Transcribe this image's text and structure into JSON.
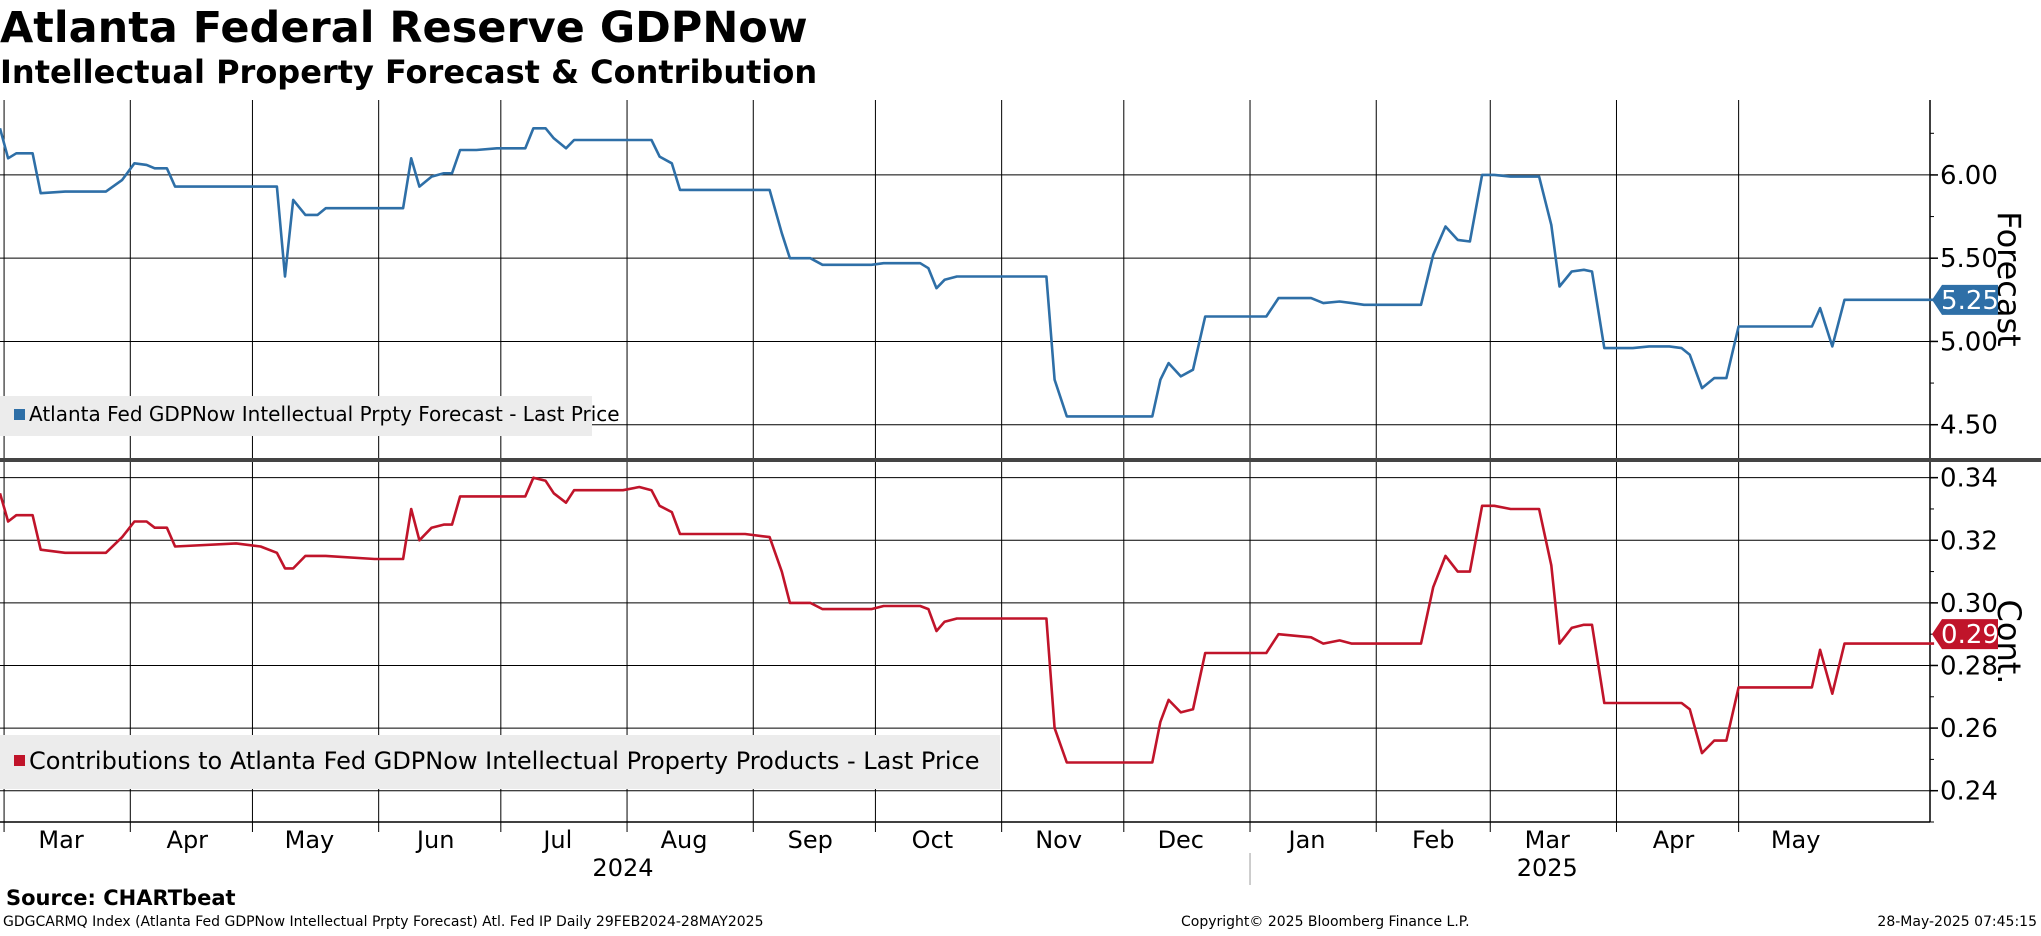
{
  "header": {
    "title": "Atlanta Federal Reserve GDPNow",
    "subtitle": "Intellectual Property Forecast & Contribution"
  },
  "footer": {
    "source": "Source: CHARTbeat",
    "left": "GDGCARMQ Index (Atlanta Fed GDPNow Intellectual Prpty Forecast) Atl. Fed IP  Daily 29FEB2024-28MAY2025",
    "middle": "Copyright© 2025 Bloomberg Finance L.P.",
    "right": "28-May-2025 07:45:15"
  },
  "x_axis": {
    "months": [
      {
        "label": "Mar",
        "date": "2024-03-15"
      },
      {
        "label": "Apr",
        "date": "2024-04-15"
      },
      {
        "label": "May",
        "date": "2024-05-15"
      },
      {
        "label": "Jun",
        "date": "2024-06-15"
      },
      {
        "label": "Jul",
        "date": "2024-07-15"
      },
      {
        "label": "Aug",
        "date": "2024-08-15"
      },
      {
        "label": "Sep",
        "date": "2024-09-15"
      },
      {
        "label": "Oct",
        "date": "2024-10-15"
      },
      {
        "label": "Nov",
        "date": "2024-11-15"
      },
      {
        "label": "Dec",
        "date": "2024-12-15"
      },
      {
        "label": "Jan",
        "date": "2025-01-15"
      },
      {
        "label": "Feb",
        "date": "2025-02-15"
      },
      {
        "label": "Mar",
        "date": "2025-03-15"
      },
      {
        "label": "Apr",
        "date": "2025-04-15"
      },
      {
        "label": "May",
        "date": "2025-05-15"
      }
    ],
    "years": [
      {
        "label": "2024",
        "date": "2024-07-31"
      },
      {
        "label": "2025",
        "date": "2025-03-15"
      }
    ]
  },
  "chart_data": [
    {
      "type": "line",
      "series": [
        {
          "name": "Atlanta Fed GDPNow Intellectual Prpty Forecast - Last Price",
          "color": "#2e6fa7",
          "last_value": "5.25",
          "points": [
            [
              "2024-02-29",
              6.28
            ],
            [
              "2024-03-02",
              6.1
            ],
            [
              "2024-03-04",
              6.13
            ],
            [
              "2024-03-08",
              6.13
            ],
            [
              "2024-03-10",
              5.89
            ],
            [
              "2024-03-16",
              5.9
            ],
            [
              "2024-03-26",
              5.9
            ],
            [
              "2024-03-30",
              5.97
            ],
            [
              "2024-04-02",
              6.07
            ],
            [
              "2024-04-05",
              6.06
            ],
            [
              "2024-04-07",
              6.04
            ],
            [
              "2024-04-10",
              6.04
            ],
            [
              "2024-04-12",
              5.93
            ],
            [
              "2024-04-27",
              5.93
            ],
            [
              "2024-05-07",
              5.93
            ],
            [
              "2024-05-09",
              5.39
            ],
            [
              "2024-05-11",
              5.85
            ],
            [
              "2024-05-14",
              5.76
            ],
            [
              "2024-05-17",
              5.76
            ],
            [
              "2024-05-19",
              5.8
            ],
            [
              "2024-05-31",
              5.8
            ],
            [
              "2024-06-07",
              5.8
            ],
            [
              "2024-06-09",
              6.1
            ],
            [
              "2024-06-11",
              5.93
            ],
            [
              "2024-06-14",
              5.99
            ],
            [
              "2024-06-17",
              6.01
            ],
            [
              "2024-06-19",
              6.01
            ],
            [
              "2024-06-21",
              6.15
            ],
            [
              "2024-06-25",
              6.15
            ],
            [
              "2024-06-30",
              6.16
            ],
            [
              "2024-07-07",
              6.16
            ],
            [
              "2024-07-09",
              6.28
            ],
            [
              "2024-07-12",
              6.28
            ],
            [
              "2024-07-14",
              6.22
            ],
            [
              "2024-07-17",
              6.16
            ],
            [
              "2024-07-19",
              6.21
            ],
            [
              "2024-07-31",
              6.21
            ],
            [
              "2024-08-07",
              6.21
            ],
            [
              "2024-08-09",
              6.11
            ],
            [
              "2024-08-12",
              6.07
            ],
            [
              "2024-08-14",
              5.91
            ],
            [
              "2024-08-30",
              5.91
            ],
            [
              "2024-09-05",
              5.91
            ],
            [
              "2024-09-08",
              5.65
            ],
            [
              "2024-09-10",
              5.5
            ],
            [
              "2024-09-15",
              5.5
            ],
            [
              "2024-09-18",
              5.46
            ],
            [
              "2024-09-30",
              5.46
            ],
            [
              "2024-10-03",
              5.47
            ],
            [
              "2024-10-12",
              5.47
            ],
            [
              "2024-10-14",
              5.44
            ],
            [
              "2024-10-16",
              5.32
            ],
            [
              "2024-10-18",
              5.37
            ],
            [
              "2024-10-21",
              5.39
            ],
            [
              "2024-11-01",
              5.39
            ],
            [
              "2024-11-12",
              5.39
            ],
            [
              "2024-11-14",
              4.77
            ],
            [
              "2024-11-17",
              4.55
            ],
            [
              "2024-11-26",
              4.55
            ],
            [
              "2024-11-28",
              4.55
            ],
            [
              "2024-12-08",
              4.55
            ],
            [
              "2024-12-10",
              4.77
            ],
            [
              "2024-12-12",
              4.87
            ],
            [
              "2024-12-15",
              4.79
            ],
            [
              "2024-12-18",
              4.83
            ],
            [
              "2024-12-21",
              5.15
            ],
            [
              "2025-01-05",
              5.15
            ],
            [
              "2025-01-08",
              5.26
            ],
            [
              "2025-01-16",
              5.26
            ],
            [
              "2025-01-19",
              5.23
            ],
            [
              "2025-01-23",
              5.24
            ],
            [
              "2025-01-26",
              5.23
            ],
            [
              "2025-01-29",
              5.22
            ],
            [
              "2025-02-07",
              5.22
            ],
            [
              "2025-02-12",
              5.22
            ],
            [
              "2025-02-15",
              5.52
            ],
            [
              "2025-02-18",
              5.69
            ],
            [
              "2025-02-21",
              5.61
            ],
            [
              "2025-02-24",
              5.6
            ],
            [
              "2025-02-27",
              6.0
            ],
            [
              "2025-03-02",
              6.0
            ],
            [
              "2025-03-06",
              5.99
            ],
            [
              "2025-03-13",
              5.99
            ],
            [
              "2025-03-16",
              5.7
            ],
            [
              "2025-03-18",
              5.33
            ],
            [
              "2025-03-21",
              5.42
            ],
            [
              "2025-03-24",
              5.43
            ],
            [
              "2025-03-26",
              5.42
            ],
            [
              "2025-03-29",
              4.96
            ],
            [
              "2025-04-05",
              4.96
            ],
            [
              "2025-04-09",
              4.97
            ],
            [
              "2025-04-14",
              4.97
            ],
            [
              "2025-04-17",
              4.96
            ],
            [
              "2025-04-19",
              4.92
            ],
            [
              "2025-04-22",
              4.72
            ],
            [
              "2025-04-25",
              4.78
            ],
            [
              "2025-04-28",
              4.78
            ],
            [
              "2025-05-01",
              5.09
            ],
            [
              "2025-05-07",
              5.09
            ],
            [
              "2025-05-13",
              5.09
            ],
            [
              "2025-05-19",
              5.09
            ],
            [
              "2025-05-21",
              5.2
            ],
            [
              "2025-05-24",
              4.97
            ],
            [
              "2025-05-27",
              5.25
            ],
            [
              "2025-06-04",
              5.25
            ],
            [
              "2025-06-11",
              5.25
            ],
            [
              "2025-06-18",
              5.25
            ]
          ]
        }
      ],
      "ylabel": "Forecast",
      "ylim": [
        4.3,
        6.45
      ],
      "yticks": [
        "4.50",
        "5.00",
        "5.50",
        "6.00"
      ],
      "grid": true,
      "legend": "bottom-left"
    },
    {
      "type": "line",
      "series": [
        {
          "name": "Contributions to Atlanta Fed GDPNow Intellectual Property Products - Last Price",
          "color": "#c0142a",
          "last_value": "0.29",
          "points": [
            [
              "2024-02-29",
              0.335
            ],
            [
              "2024-03-02",
              0.326
            ],
            [
              "2024-03-04",
              0.328
            ],
            [
              "2024-03-08",
              0.328
            ],
            [
              "2024-03-10",
              0.317
            ],
            [
              "2024-03-16",
              0.316
            ],
            [
              "2024-03-26",
              0.316
            ],
            [
              "2024-03-30",
              0.321
            ],
            [
              "2024-04-02",
              0.326
            ],
            [
              "2024-04-05",
              0.326
            ],
            [
              "2024-04-07",
              0.324
            ],
            [
              "2024-04-10",
              0.324
            ],
            [
              "2024-04-12",
              0.318
            ],
            [
              "2024-04-27",
              0.319
            ],
            [
              "2024-05-03",
              0.318
            ],
            [
              "2024-05-07",
              0.316
            ],
            [
              "2024-05-09",
              0.311
            ],
            [
              "2024-05-11",
              0.311
            ],
            [
              "2024-05-14",
              0.315
            ],
            [
              "2024-05-19",
              0.315
            ],
            [
              "2024-05-31",
              0.314
            ],
            [
              "2024-06-07",
              0.314
            ],
            [
              "2024-06-09",
              0.33
            ],
            [
              "2024-06-11",
              0.32
            ],
            [
              "2024-06-14",
              0.324
            ],
            [
              "2024-06-17",
              0.325
            ],
            [
              "2024-06-19",
              0.325
            ],
            [
              "2024-06-21",
              0.334
            ],
            [
              "2024-06-25",
              0.334
            ],
            [
              "2024-06-30",
              0.334
            ],
            [
              "2024-07-07",
              0.334
            ],
            [
              "2024-07-09",
              0.34
            ],
            [
              "2024-07-12",
              0.339
            ],
            [
              "2024-07-14",
              0.335
            ],
            [
              "2024-07-17",
              0.332
            ],
            [
              "2024-07-19",
              0.336
            ],
            [
              "2024-07-31",
              0.336
            ],
            [
              "2024-08-04",
              0.337
            ],
            [
              "2024-08-07",
              0.336
            ],
            [
              "2024-08-09",
              0.331
            ],
            [
              "2024-08-12",
              0.329
            ],
            [
              "2024-08-14",
              0.322
            ],
            [
              "2024-08-30",
              0.322
            ],
            [
              "2024-09-05",
              0.321
            ],
            [
              "2024-09-08",
              0.31
            ],
            [
              "2024-09-10",
              0.3
            ],
            [
              "2024-09-15",
              0.3
            ],
            [
              "2024-09-18",
              0.298
            ],
            [
              "2024-09-30",
              0.298
            ],
            [
              "2024-10-03",
              0.299
            ],
            [
              "2024-10-12",
              0.299
            ],
            [
              "2024-10-14",
              0.298
            ],
            [
              "2024-10-16",
              0.291
            ],
            [
              "2024-10-18",
              0.294
            ],
            [
              "2024-10-21",
              0.295
            ],
            [
              "2024-11-01",
              0.295
            ],
            [
              "2024-11-12",
              0.295
            ],
            [
              "2024-11-14",
              0.26
            ],
            [
              "2024-11-17",
              0.249
            ],
            [
              "2024-11-26",
              0.249
            ],
            [
              "2024-11-28",
              0.249
            ],
            [
              "2024-12-08",
              0.249
            ],
            [
              "2024-12-10",
              0.262
            ],
            [
              "2024-12-12",
              0.269
            ],
            [
              "2024-12-15",
              0.265
            ],
            [
              "2024-12-18",
              0.266
            ],
            [
              "2024-12-21",
              0.284
            ],
            [
              "2025-01-05",
              0.284
            ],
            [
              "2025-01-08",
              0.29
            ],
            [
              "2025-01-16",
              0.289
            ],
            [
              "2025-01-19",
              0.287
            ],
            [
              "2025-01-23",
              0.288
            ],
            [
              "2025-01-26",
              0.287
            ],
            [
              "2025-01-29",
              0.287
            ],
            [
              "2025-02-07",
              0.287
            ],
            [
              "2025-02-12",
              0.287
            ],
            [
              "2025-02-15",
              0.305
            ],
            [
              "2025-02-18",
              0.315
            ],
            [
              "2025-02-21",
              0.31
            ],
            [
              "2025-02-24",
              0.31
            ],
            [
              "2025-02-27",
              0.331
            ],
            [
              "2025-03-02",
              0.331
            ],
            [
              "2025-03-06",
              0.33
            ],
            [
              "2025-03-13",
              0.33
            ],
            [
              "2025-03-16",
              0.312
            ],
            [
              "2025-03-18",
              0.287
            ],
            [
              "2025-03-21",
              0.292
            ],
            [
              "2025-03-24",
              0.293
            ],
            [
              "2025-03-26",
              0.293
            ],
            [
              "2025-03-29",
              0.268
            ],
            [
              "2025-04-05",
              0.268
            ],
            [
              "2025-04-09",
              0.268
            ],
            [
              "2025-04-14",
              0.268
            ],
            [
              "2025-04-17",
              0.268
            ],
            [
              "2025-04-19",
              0.266
            ],
            [
              "2025-04-22",
              0.252
            ],
            [
              "2025-04-25",
              0.256
            ],
            [
              "2025-04-28",
              0.256
            ],
            [
              "2025-05-01",
              0.273
            ],
            [
              "2025-05-07",
              0.273
            ],
            [
              "2025-05-13",
              0.273
            ],
            [
              "2025-05-19",
              0.273
            ],
            [
              "2025-05-21",
              0.285
            ],
            [
              "2025-05-24",
              0.271
            ],
            [
              "2025-05-27",
              0.287
            ],
            [
              "2025-06-04",
              0.287
            ],
            [
              "2025-06-11",
              0.287
            ],
            [
              "2025-06-18",
              0.287
            ]
          ]
        }
      ],
      "ylabel": "Cont.",
      "ylim": [
        0.23,
        0.345
      ],
      "yticks": [
        "0.24",
        "0.26",
        "0.28",
        "0.30",
        "0.32",
        "0.34"
      ],
      "grid": true,
      "legend": "bottom-left"
    }
  ]
}
